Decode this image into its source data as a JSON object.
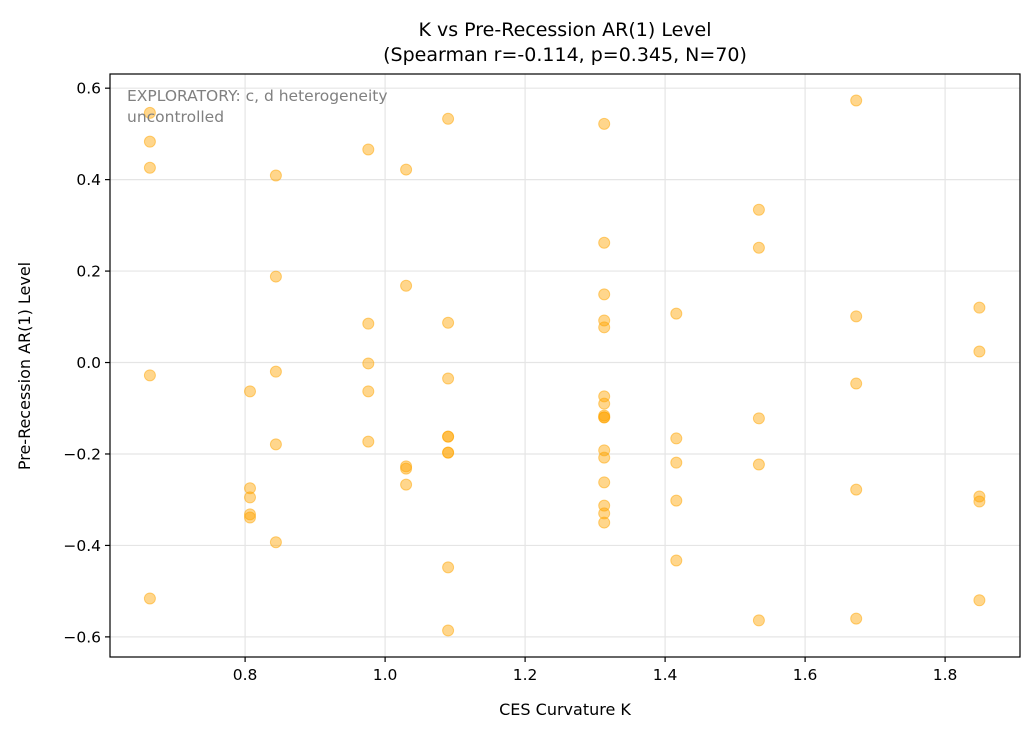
{
  "chart_data": {
    "type": "scatter",
    "title": "K vs Pre-Recession AR(1) Level",
    "subtitle": "(Spearman r=-0.114, p=0.345, N=70)",
    "xlabel": "CES Curvature K",
    "ylabel": "Pre-Recession AR(1) Level",
    "annotation": [
      "EXPLORATORY: c, d heterogeneity",
      "uncontrolled"
    ],
    "xlim": [
      0.607,
      1.907
    ],
    "ylim": [
      -0.644,
      0.631
    ],
    "xticks": [
      0.8,
      1.0,
      1.2,
      1.4,
      1.6,
      1.8
    ],
    "xtick_labels": [
      "0.8",
      "1.0",
      "1.2",
      "1.4",
      "1.6",
      "1.8"
    ],
    "yticks": [
      0.6,
      0.4,
      0.2,
      0.0,
      -0.2,
      -0.4,
      -0.6
    ],
    "ytick_labels": [
      "0.6",
      "0.4",
      "0.2",
      "0.0",
      "−0.2",
      "−0.4",
      "−0.6"
    ],
    "grid": true,
    "color": "#FFA500",
    "points": [
      [
        0.664,
        0.546
      ],
      [
        0.664,
        0.483
      ],
      [
        0.664,
        0.426
      ],
      [
        0.664,
        -0.028
      ],
      [
        0.664,
        -0.516
      ],
      [
        0.807,
        -0.063
      ],
      [
        0.807,
        -0.275
      ],
      [
        0.807,
        -0.295
      ],
      [
        0.807,
        -0.332
      ],
      [
        0.807,
        -0.339
      ],
      [
        0.844,
        0.409
      ],
      [
        0.844,
        0.188
      ],
      [
        0.844,
        -0.02
      ],
      [
        0.844,
        -0.179
      ],
      [
        0.844,
        -0.393
      ],
      [
        0.976,
        0.466
      ],
      [
        0.976,
        0.085
      ],
      [
        0.976,
        -0.002
      ],
      [
        0.976,
        -0.063
      ],
      [
        0.976,
        -0.173
      ],
      [
        1.03,
        0.422
      ],
      [
        1.03,
        0.168
      ],
      [
        1.03,
        -0.227
      ],
      [
        1.03,
        -0.232
      ],
      [
        1.03,
        -0.267
      ],
      [
        1.09,
        0.533
      ],
      [
        1.09,
        0.087
      ],
      [
        1.09,
        -0.035
      ],
      [
        1.09,
        -0.162
      ],
      [
        1.09,
        -0.162
      ],
      [
        1.09,
        -0.197
      ],
      [
        1.09,
        -0.197
      ],
      [
        1.09,
        -0.448
      ],
      [
        1.09,
        -0.586
      ],
      [
        1.313,
        0.522
      ],
      [
        1.313,
        0.262
      ],
      [
        1.313,
        0.149
      ],
      [
        1.313,
        0.092
      ],
      [
        1.313,
        0.077
      ],
      [
        1.313,
        -0.074
      ],
      [
        1.313,
        -0.09
      ],
      [
        1.313,
        -0.116
      ],
      [
        1.313,
        -0.12
      ],
      [
        1.313,
        -0.12
      ],
      [
        1.313,
        -0.192
      ],
      [
        1.313,
        -0.208
      ],
      [
        1.313,
        -0.262
      ],
      [
        1.313,
        -0.313
      ],
      [
        1.313,
        -0.33
      ],
      [
        1.313,
        -0.35
      ],
      [
        1.416,
        0.107
      ],
      [
        1.416,
        -0.166
      ],
      [
        1.416,
        -0.219
      ],
      [
        1.416,
        -0.302
      ],
      [
        1.416,
        -0.433
      ],
      [
        1.534,
        0.334
      ],
      [
        1.534,
        0.251
      ],
      [
        1.534,
        -0.122
      ],
      [
        1.534,
        -0.223
      ],
      [
        1.534,
        -0.564
      ],
      [
        1.673,
        0.573
      ],
      [
        1.673,
        0.101
      ],
      [
        1.673,
        -0.046
      ],
      [
        1.673,
        -0.278
      ],
      [
        1.673,
        -0.56
      ],
      [
        1.849,
        0.12
      ],
      [
        1.849,
        0.024
      ],
      [
        1.849,
        -0.293
      ],
      [
        1.849,
        -0.304
      ],
      [
        1.849,
        -0.52
      ]
    ]
  }
}
